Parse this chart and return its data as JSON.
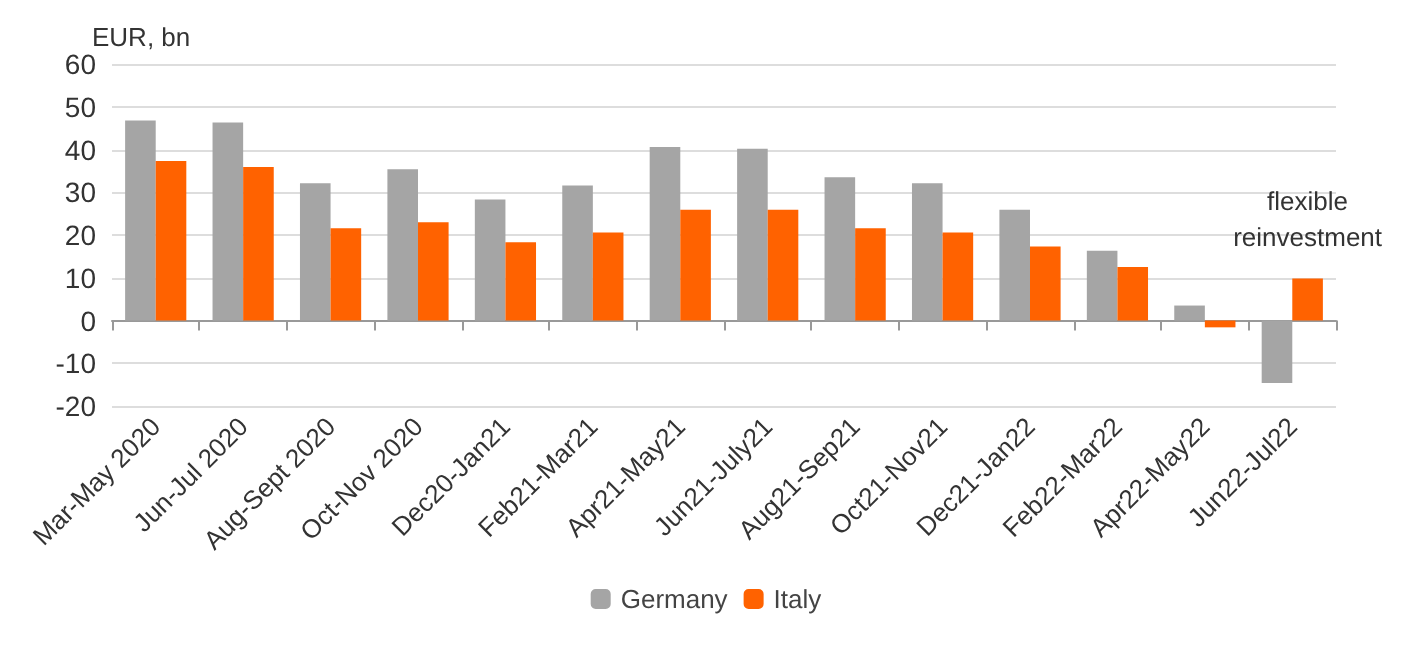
{
  "chart_data": {
    "type": "bar",
    "ylabel": "EUR, bn",
    "categories": [
      "Mar-May 2020",
      "Jun-Jul 2020",
      "Aug-Sept 2020",
      "Oct-Nov 2020",
      "Dec20-Jan21",
      "Feb21-Mar21",
      "Apr21-May21",
      "Jun21-July21",
      "Aug21-Sep21",
      "Oct21-Nov21",
      "Dec21-Jan22",
      "Feb22-Mar22",
      "Apr22-May22",
      "Jun22-Jul22"
    ],
    "series": [
      {
        "name": "Germany",
        "color": "#a5a5a5",
        "values": [
          46.8,
          46.3,
          32.1,
          35.4,
          28.3,
          31.6,
          40.6,
          40.2,
          33.5,
          32.1,
          25.9,
          16.3,
          3.5,
          -14.6
        ]
      },
      {
        "name": "Italy",
        "color": "#ff6200",
        "values": [
          37.3,
          35.9,
          21.6,
          23,
          18.3,
          20.6,
          25.9,
          25.9,
          21.6,
          20.6,
          17.3,
          12.5,
          -1.6,
          9.8
        ]
      }
    ],
    "ylim": [
      -20,
      60
    ],
    "yticks": [
      -20,
      -10,
      0,
      10,
      20,
      30,
      40,
      50,
      60
    ],
    "grid": "y",
    "legend": "bottom",
    "annotations": [
      {
        "text": "flexible\nreinvestment",
        "x": "Jun22-Jul22",
        "y": 9.8
      }
    ]
  }
}
